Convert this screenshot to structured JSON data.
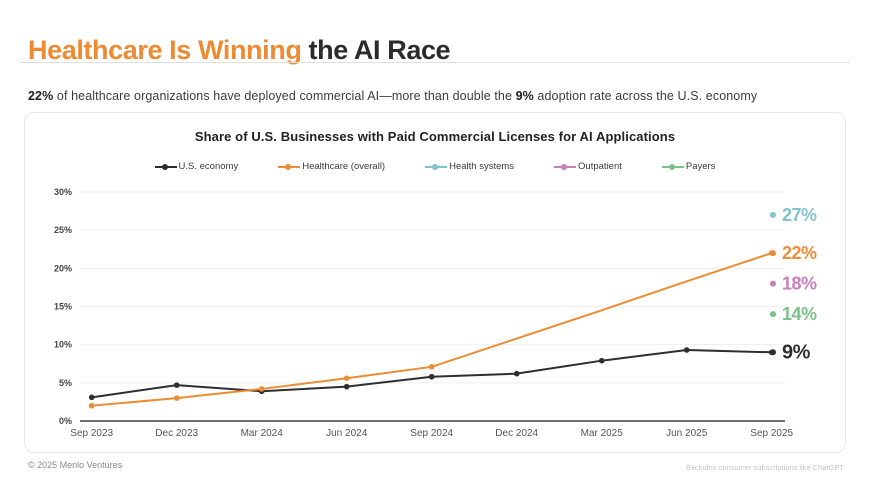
{
  "header": {
    "title_highlight": "Healthcare Is Winning",
    "title_rest": " the AI Race",
    "subtitle": {
      "bold1": "22%",
      "text1": " of healthcare organizations have deployed commercial AI—more than double the ",
      "bold2": "9%",
      "text2": " adoption rate across the U.S. economy"
    }
  },
  "footer": {
    "copyright": "© 2025 Menlo Ventures",
    "footnote": "Excludes consumer subscriptions like ChatGPT"
  },
  "colors": {
    "accent_orange": "#EC8C35",
    "line_black": "#2E2E2E",
    "teal": "#82C2CA",
    "purple": "#C77FBE",
    "green": "#79C288",
    "grid": "#efefef",
    "axis": "#3f3f3f"
  },
  "chart_data": {
    "type": "line",
    "title": "Share of U.S. Businesses with Paid Commercial Licenses for AI Applications",
    "categories": [
      "Sep 2023",
      "Dec 2023",
      "Mar 2024",
      "Jun 2024",
      "Sep 2024",
      "Dec 2024",
      "Mar 2025",
      "Jun 2025",
      "Sep 2025"
    ],
    "yticks": [
      "0%",
      "5%",
      "10%",
      "15%",
      "20%",
      "25%",
      "30%"
    ],
    "ylim": [
      0,
      30
    ],
    "grid": true,
    "legend_position": "top",
    "series": [
      {
        "name": "U.S. economy",
        "color": "#2E2E2E",
        "values": [
          3.1,
          4.7,
          3.9,
          4.5,
          5.8,
          6.2,
          7.9,
          9.3,
          9.0
        ],
        "marker_indices": [
          0,
          1,
          2,
          3,
          4,
          5,
          6,
          7,
          8
        ],
        "end_label": "9%"
      },
      {
        "name": "Healthcare (overall)",
        "color": "#EC8C35",
        "values": [
          2.0,
          3.0,
          4.2,
          5.6,
          7.1,
          10.8,
          14.5,
          18.3,
          22.0
        ],
        "marker_indices": [
          0,
          1,
          2,
          3,
          4,
          8
        ],
        "end_label": "22%"
      },
      {
        "name": "Health systems",
        "color": "#82C2CA",
        "end_value": 27,
        "end_label": "27%"
      },
      {
        "name": "Outpatient",
        "color": "#C77FBE",
        "end_value": 18,
        "end_label": "18%"
      },
      {
        "name": "Payers",
        "color": "#79C288",
        "end_value": 14,
        "end_label": "14%"
      }
    ]
  }
}
